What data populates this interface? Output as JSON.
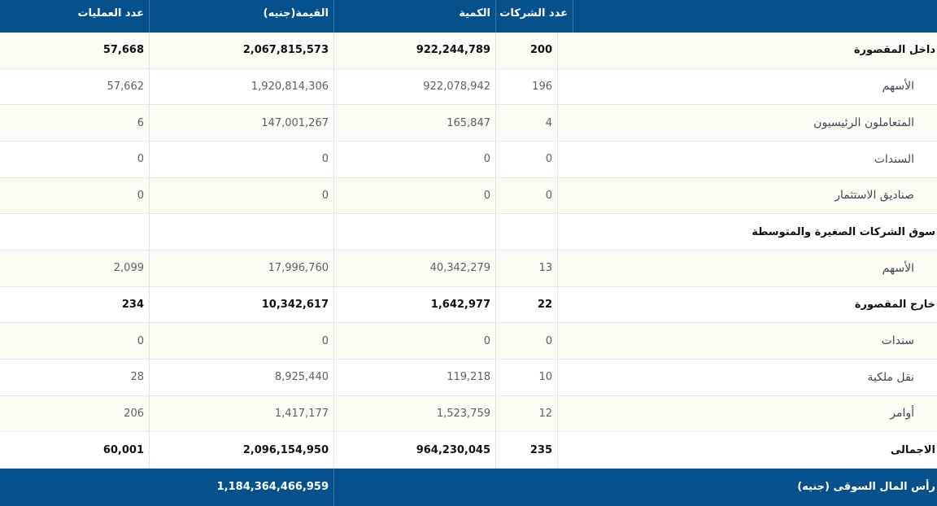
{
  "table": {
    "header": [
      "عدد الشركات",
      "الكمية",
      "القيمة(جنيه)",
      "عدد العمليات"
    ],
    "rows": [
      {
        "label": "داخل المقصورة",
        "bold": true,
        "values": [
          "200",
          "922,244,789",
          "2,067,815,573",
          "57,668"
        ]
      },
      {
        "label": "الأسهم",
        "bold": false,
        "values": [
          "196",
          "922,078,942",
          "1,920,814,306",
          "57,662"
        ]
      },
      {
        "label": "المتعاملون الرئيسيون",
        "bold": false,
        "values": [
          "4",
          "165,847",
          "147,001,267",
          "6"
        ]
      },
      {
        "label": "السندات",
        "bold": false,
        "values": [
          "0",
          "0",
          "0",
          "0"
        ]
      },
      {
        "label": "صناديق الاستثمار",
        "bold": false,
        "values": [
          "0",
          "0",
          "0",
          "0"
        ]
      },
      {
        "label": "سوق الشركات الصغيرة والمتوسطة",
        "bold": true
      },
      {
        "label": "الأسهم",
        "bold": false,
        "values": [
          "13",
          "40,342,279",
          "17,996,760",
          "2,099"
        ]
      },
      {
        "label": "خارج المقصورة",
        "bold": true,
        "values": [
          "22",
          "1,642,977",
          "10,342,617",
          "234"
        ]
      },
      {
        "label": "سندات",
        "bold": false,
        "values": [
          "0",
          "0",
          "0",
          "0"
        ]
      },
      {
        "label": "نقل ملكية",
        "bold": false,
        "values": [
          "10",
          "119,218",
          "8,925,440",
          "28"
        ]
      },
      {
        "label": "أوامر",
        "bold": false,
        "values": [
          "12",
          "1,523,759",
          "1,417,177",
          "206"
        ]
      },
      {
        "label": "الاجمالى",
        "bold": true,
        "values": [
          "235",
          "964,230,045",
          "2,096,154,950",
          "60,001"
        ]
      }
    ],
    "footer": {
      "label": "رأس المال السوقى (جنيه)",
      "value": "1,184,364,466,959"
    }
  }
}
